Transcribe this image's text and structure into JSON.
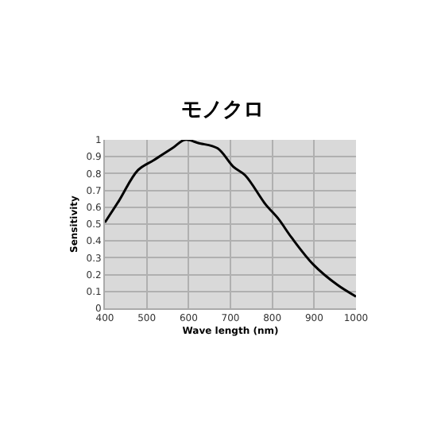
{
  "chart_data": {
    "type": "line",
    "title": "モノクロ",
    "xlabel": "Wave length (nm)",
    "ylabel": "Sensitivity",
    "x": [
      400,
      434,
      479,
      517,
      561,
      591,
      625,
      669,
      707,
      735,
      783,
      815,
      846,
      898,
      955,
      1000
    ],
    "series": [
      {
        "color": "#000000",
        "values": [
          0.51,
          0.64,
          0.82,
          0.88,
          0.95,
          1.0,
          0.98,
          0.95,
          0.84,
          0.79,
          0.62,
          0.53,
          0.42,
          0.26,
          0.14,
          0.07
        ]
      }
    ],
    "xlim": [
      400,
      1000
    ],
    "xticks": [
      400,
      500,
      600,
      700,
      800,
      900,
      1000
    ],
    "ylim": [
      0,
      1
    ],
    "yticks": [
      0,
      0.1,
      0.2,
      0.3,
      0.4,
      0.5,
      0.6,
      0.7,
      0.8,
      0.9,
      1
    ],
    "grid": true,
    "legend": false
  }
}
